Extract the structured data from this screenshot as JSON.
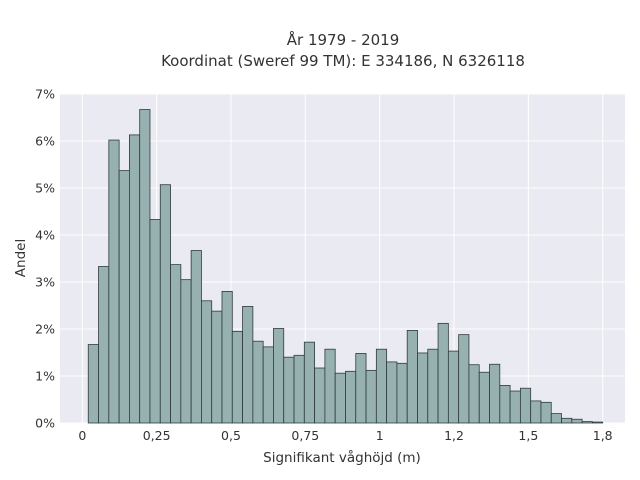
{
  "chart_data": {
    "type": "bar",
    "title": "År 1979 - 2019",
    "subtitle": "Koordinat (Sweref 99 TM): E 334186, N 6326118",
    "xlabel": "Signifikant våghöjd (m)",
    "ylabel": "Andel",
    "xlim": [
      -0.075,
      1.825
    ],
    "ylim": [
      0,
      7
    ],
    "x_ticks": [
      0,
      0.25,
      0.5,
      0.75,
      1,
      1.25,
      1.5,
      1.75
    ],
    "x_tick_labels": [
      "0",
      "0,25",
      "0,5",
      "0,75",
      "1",
      "1,2",
      "1,5",
      "1,8"
    ],
    "y_ticks": [
      0,
      1,
      2,
      3,
      4,
      5,
      6,
      7
    ],
    "y_tick_labels": [
      "0%",
      "1%",
      "2%",
      "3%",
      "4%",
      "5%",
      "6%",
      "7%"
    ],
    "bin_start": 0.02,
    "bin_width": 0.0346,
    "values": [
      1.67,
      3.33,
      6.02,
      5.37,
      6.13,
      6.67,
      4.33,
      5.07,
      3.37,
      3.05,
      3.67,
      2.6,
      2.38,
      2.8,
      1.95,
      2.48,
      1.74,
      1.62,
      2.01,
      1.4,
      1.44,
      1.72,
      1.17,
      1.57,
      1.06,
      1.1,
      1.48,
      1.12,
      1.57,
      1.3,
      1.27,
      1.97,
      1.49,
      1.57,
      2.12,
      1.53,
      1.88,
      1.24,
      1.08,
      1.25,
      0.8,
      0.68,
      0.74,
      0.47,
      0.44,
      0.2,
      0.1,
      0.08,
      0.03,
      0.02
    ],
    "grid": true,
    "legend": "none",
    "colors": {
      "background": "#eaeaf2",
      "grid": "#ffffff",
      "bar_fill": "#97b1b1",
      "bar_stroke": "#2f3b3b"
    }
  }
}
